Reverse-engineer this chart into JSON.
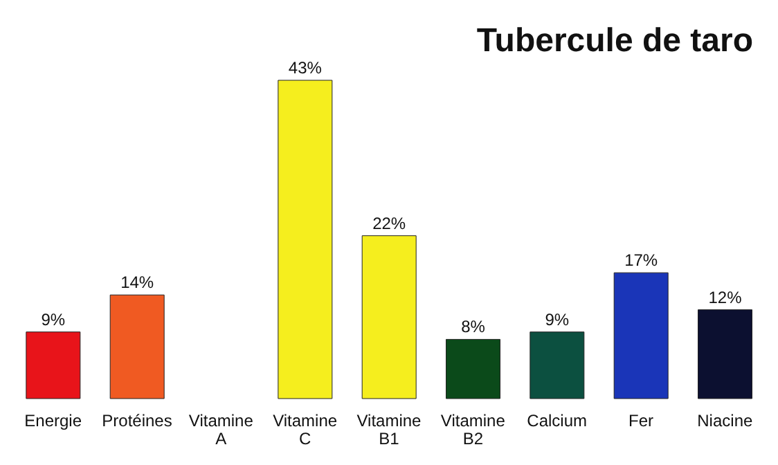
{
  "chart_data": {
    "type": "bar",
    "title": "Tubercule de taro",
    "categories": [
      "Energie",
      "Protéines",
      "Vitamine A",
      "Vitamine C",
      "Vitamine B1",
      "Vitamine B2",
      "Calcium",
      "Fer",
      "Niacine"
    ],
    "values": [
      9,
      14,
      null,
      43,
      22,
      8,
      9,
      17,
      12
    ],
    "value_labels": [
      "9%",
      "14%",
      null,
      "43%",
      "22%",
      "8%",
      "9%",
      "17%",
      "12%"
    ],
    "colors": [
      "#e8141a",
      "#f05a22",
      "#f5ee1e",
      "#f5ee1e",
      "#f5ee1e",
      "#0b4a1a",
      "#0c5040",
      "#1a35b8",
      "#0c1030"
    ]
  }
}
